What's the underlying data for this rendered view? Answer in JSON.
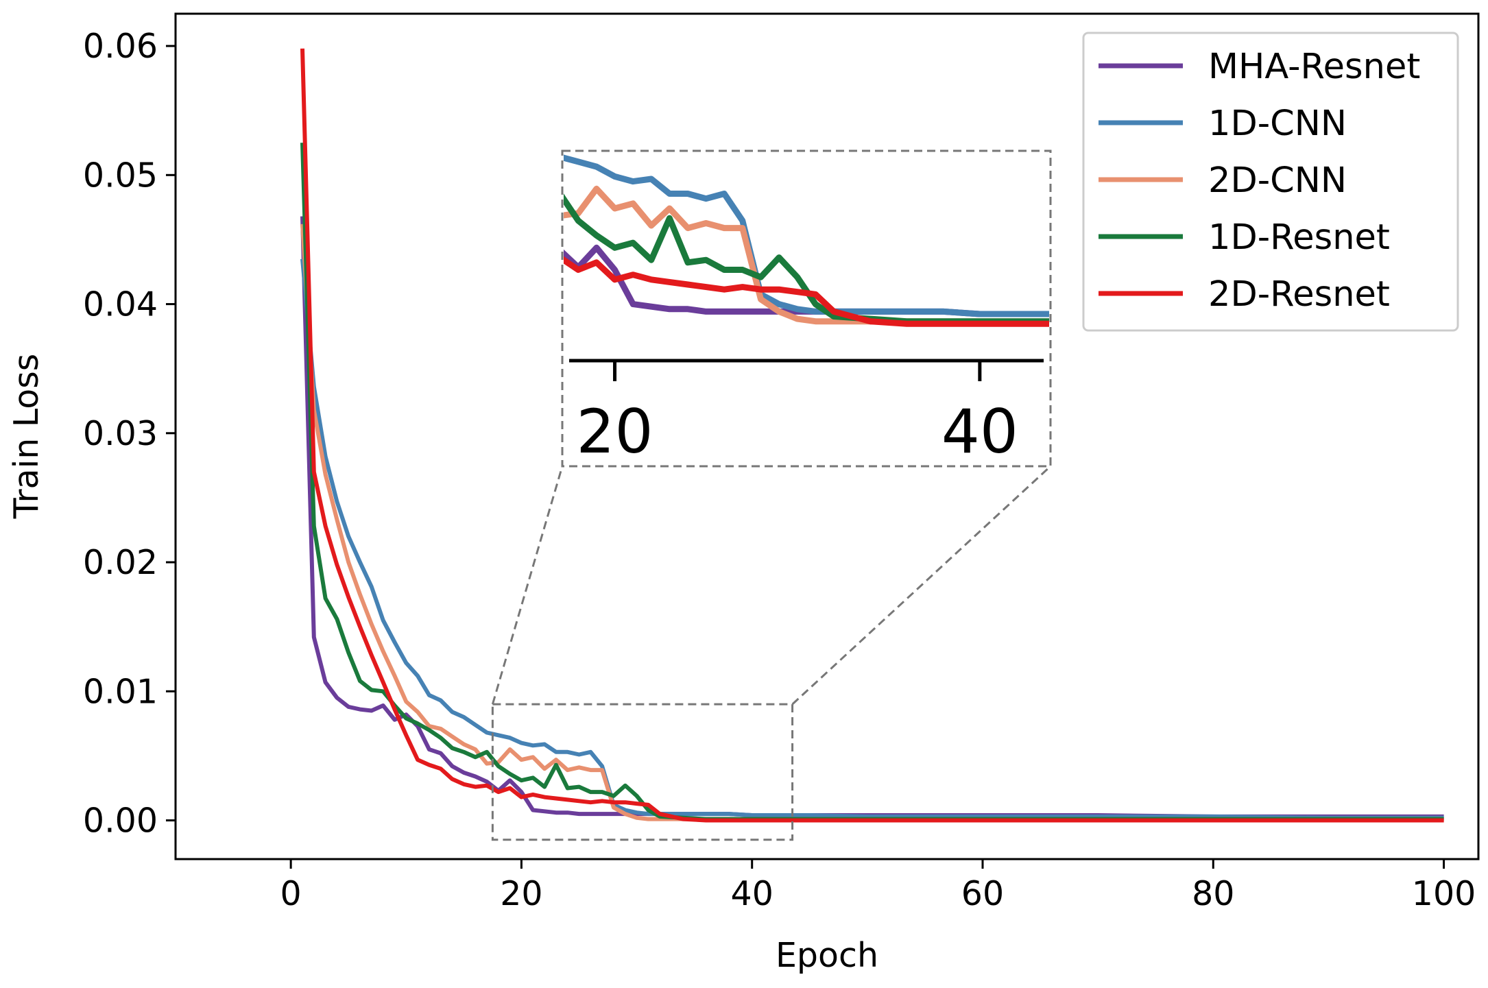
{
  "chart_data": {
    "type": "line",
    "title": "",
    "xlabel": "Epoch",
    "ylabel": "Train Loss",
    "xlim": [
      -10,
      103
    ],
    "ylim": [
      -0.003,
      0.0625
    ],
    "xticks": [
      0,
      20,
      40,
      60,
      80,
      100
    ],
    "xtick_labels": [
      "0",
      "20",
      "40",
      "60",
      "80",
      "100"
    ],
    "yticks": [
      0.0,
      0.01,
      0.02,
      0.03,
      0.04,
      0.05,
      0.06
    ],
    "ytick_labels": [
      "0.00",
      "0.01",
      "0.02",
      "0.03",
      "0.04",
      "0.05",
      "0.06"
    ],
    "grid": false,
    "legend_position": "top-right",
    "zoom_inset": {
      "x_range": [
        17.5,
        43.5
      ],
      "y_range": [
        -0.0015,
        0.009
      ],
      "xticks": [
        20,
        40
      ],
      "xtick_labels": [
        "20",
        "40"
      ]
    },
    "series": [
      {
        "name": "MHA-Resnet",
        "color": "#6a3d9a",
        "x": [
          1,
          2,
          3,
          4,
          5,
          6,
          7,
          8,
          9,
          10,
          11,
          12,
          13,
          14,
          15,
          16,
          17,
          18,
          19,
          20,
          21,
          22,
          23,
          24,
          25,
          26,
          27,
          28,
          29,
          30,
          31,
          32,
          34,
          36,
          38,
          40,
          45,
          50,
          60,
          70,
          80,
          90,
          100
        ],
        "values": [
          0.0468,
          0.0142,
          0.0107,
          0.0095,
          0.0088,
          0.0086,
          0.0085,
          0.0089,
          0.0078,
          0.0082,
          0.0073,
          0.0055,
          0.0052,
          0.0042,
          0.0037,
          0.0034,
          0.003,
          0.0023,
          0.0031,
          0.0022,
          0.0008,
          0.0007,
          0.0006,
          0.0006,
          0.0005,
          0.0005,
          0.0005,
          0.0005,
          0.0005,
          0.0005,
          0.0005,
          0.0005,
          0.0005,
          0.0005,
          0.0005,
          0.0004,
          0.0004,
          0.0004,
          0.0004,
          0.0004,
          0.0003,
          0.0003,
          0.0003
        ]
      },
      {
        "name": "1D-CNN",
        "color": "#4682b4",
        "x": [
          1,
          2,
          3,
          4,
          5,
          6,
          7,
          8,
          9,
          10,
          11,
          12,
          13,
          14,
          15,
          16,
          17,
          18,
          19,
          20,
          21,
          22,
          23,
          24,
          25,
          26,
          27,
          28,
          29,
          30,
          31,
          32,
          34,
          36,
          38,
          40,
          45,
          50,
          60,
          70,
          80,
          90,
          100
        ],
        "values": [
          0.0435,
          0.0336,
          0.0282,
          0.0247,
          0.022,
          0.02,
          0.0181,
          0.0155,
          0.0138,
          0.0122,
          0.0112,
          0.0097,
          0.0093,
          0.0084,
          0.008,
          0.0074,
          0.0068,
          0.0066,
          0.0064,
          0.006,
          0.0058,
          0.0059,
          0.0053,
          0.0053,
          0.0051,
          0.0053,
          0.0042,
          0.0012,
          0.0008,
          0.0006,
          0.0005,
          0.0005,
          0.0005,
          0.0005,
          0.0005,
          0.0004,
          0.0004,
          0.0003,
          0.0003,
          0.0003,
          0.0003,
          0.0002,
          0.0002
        ]
      },
      {
        "name": "2D-CNN",
        "color": "#e8906f",
        "x": [
          1,
          2,
          3,
          4,
          5,
          6,
          7,
          8,
          9,
          10,
          11,
          12,
          13,
          14,
          15,
          16,
          17,
          18,
          19,
          20,
          21,
          22,
          23,
          24,
          25,
          26,
          27,
          28,
          29,
          30,
          31,
          32,
          34,
          36,
          38,
          40,
          45,
          50,
          60,
          70,
          80,
          90,
          100
        ],
        "values": [
          0.0462,
          0.0318,
          0.0268,
          0.0233,
          0.02,
          0.0175,
          0.0152,
          0.0131,
          0.0112,
          0.0092,
          0.0084,
          0.0073,
          0.0071,
          0.0065,
          0.0059,
          0.0055,
          0.0044,
          0.0045,
          0.0055,
          0.0047,
          0.0049,
          0.004,
          0.0047,
          0.0039,
          0.0041,
          0.0039,
          0.0039,
          0.001,
          0.0005,
          0.0002,
          0.0001,
          0.0001,
          0.0001,
          0.0001,
          0.0001,
          0.0001,
          0.0001,
          0.0001,
          0.0001,
          0.0001,
          0.0001,
          0.0001,
          0.0001
        ]
      },
      {
        "name": "1D-Resnet",
        "color": "#1a7a3c",
        "x": [
          1,
          2,
          3,
          4,
          5,
          6,
          7,
          8,
          9,
          10,
          11,
          12,
          13,
          14,
          15,
          16,
          17,
          18,
          19,
          20,
          21,
          22,
          23,
          24,
          25,
          26,
          27,
          28,
          29,
          30,
          31,
          32,
          34,
          36,
          38,
          40,
          45,
          50,
          60,
          70,
          80,
          90,
          100
        ],
        "values": [
          0.0525,
          0.0228,
          0.0172,
          0.0156,
          0.013,
          0.0108,
          0.0101,
          0.01,
          0.0089,
          0.0079,
          0.0075,
          0.007,
          0.0064,
          0.0056,
          0.0053,
          0.0049,
          0.0053,
          0.0042,
          0.0036,
          0.0031,
          0.0033,
          0.0026,
          0.0043,
          0.0025,
          0.0026,
          0.0022,
          0.0022,
          0.0019,
          0.0027,
          0.0019,
          0.0008,
          0.0003,
          0.0002,
          0.0001,
          0.0001,
          0.0001,
          0.0001,
          0.0001,
          0.0001,
          0.0001,
          0.0001,
          0.0001,
          0.0001
        ]
      },
      {
        "name": "2D-Resnet",
        "color": "#e31a1c",
        "x": [
          1,
          2,
          3,
          4,
          5,
          6,
          7,
          8,
          9,
          10,
          11,
          12,
          13,
          14,
          15,
          16,
          17,
          18,
          19,
          20,
          21,
          22,
          23,
          24,
          25,
          26,
          27,
          28,
          29,
          30,
          31,
          32,
          34,
          36,
          38,
          40,
          45,
          50,
          60,
          70,
          80,
          90,
          100
        ],
        "values": [
          0.0598,
          0.027,
          0.0228,
          0.0198,
          0.0173,
          0.015,
          0.0128,
          0.0107,
          0.0086,
          0.0066,
          0.0047,
          0.0043,
          0.004,
          0.0032,
          0.0028,
          0.0026,
          0.0027,
          0.0022,
          0.0025,
          0.0018,
          0.002,
          0.0018,
          0.0017,
          0.0016,
          0.0015,
          0.0014,
          0.0015,
          0.0014,
          0.0014,
          0.0013,
          0.0012,
          0.0005,
          0.0001,
          0.0,
          0.0,
          0.0,
          0.0,
          0.0,
          0.0,
          0.0,
          0.0,
          0.0,
          0.0
        ]
      }
    ]
  }
}
